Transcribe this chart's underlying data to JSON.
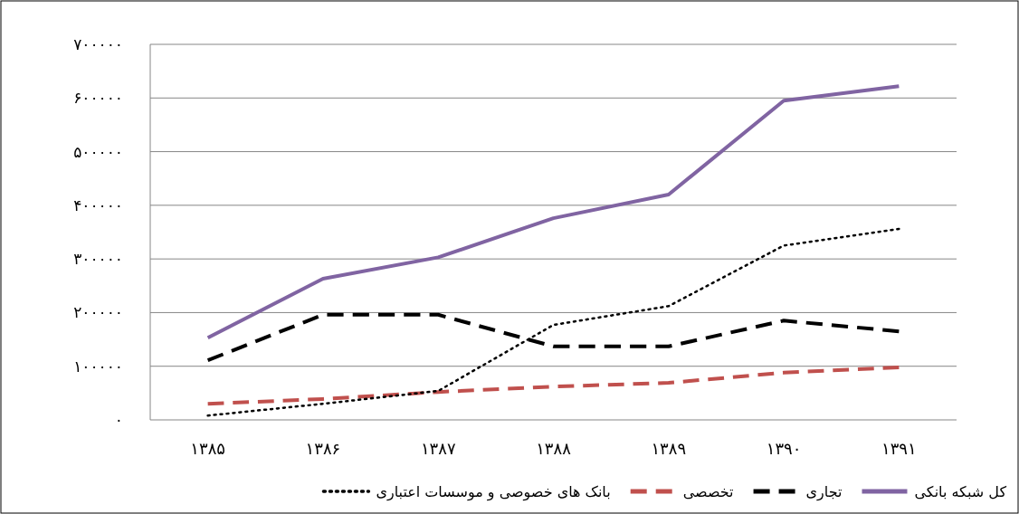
{
  "chart_data": {
    "type": "line",
    "categories": [
      "۱۳۸۵",
      "۱۳۸۶",
      "۱۳۸۷",
      "۱۳۸۸",
      "۱۳۸۹",
      "۱۳۹۰",
      "۱۳۹۱"
    ],
    "series": [
      {
        "name": "کل شبکه بانکی",
        "color": "#8064a2",
        "line_style": "solid",
        "values": [
          153000,
          263000,
          303000,
          376000,
          420000,
          595000,
          622000
        ]
      },
      {
        "name": "تجاری",
        "color": "#000000",
        "line_style": "dashed",
        "values": [
          111000,
          196000,
          196000,
          137000,
          137000,
          185000,
          165000
        ]
      },
      {
        "name": "تخصصی",
        "color": "#c0504d",
        "line_style": "dashed",
        "values": [
          30000,
          39000,
          52000,
          62000,
          69000,
          88000,
          98000
        ]
      },
      {
        "name": "بانک های خصوصی و موسسات اعتباری",
        "color": "#000000",
        "line_style": "dotted",
        "values": [
          8000,
          30000,
          54000,
          177000,
          212000,
          325000,
          356000
        ]
      }
    ],
    "ylim": [
      0,
      700000
    ],
    "yticks": [
      {
        "value": 0,
        "label": "۰"
      },
      {
        "value": 100000,
        "label": "۱۰۰۰۰۰"
      },
      {
        "value": 200000,
        "label": "۲۰۰۰۰۰"
      },
      {
        "value": 300000,
        "label": "۳۰۰۰۰۰"
      },
      {
        "value": 400000,
        "label": "۴۰۰۰۰۰"
      },
      {
        "value": 500000,
        "label": "۵۰۰۰۰۰"
      },
      {
        "value": 600000,
        "label": "۶۰۰۰۰۰"
      },
      {
        "value": 700000,
        "label": "۷۰۰۰۰۰"
      }
    ],
    "grid": "y",
    "legend": "bottom"
  }
}
